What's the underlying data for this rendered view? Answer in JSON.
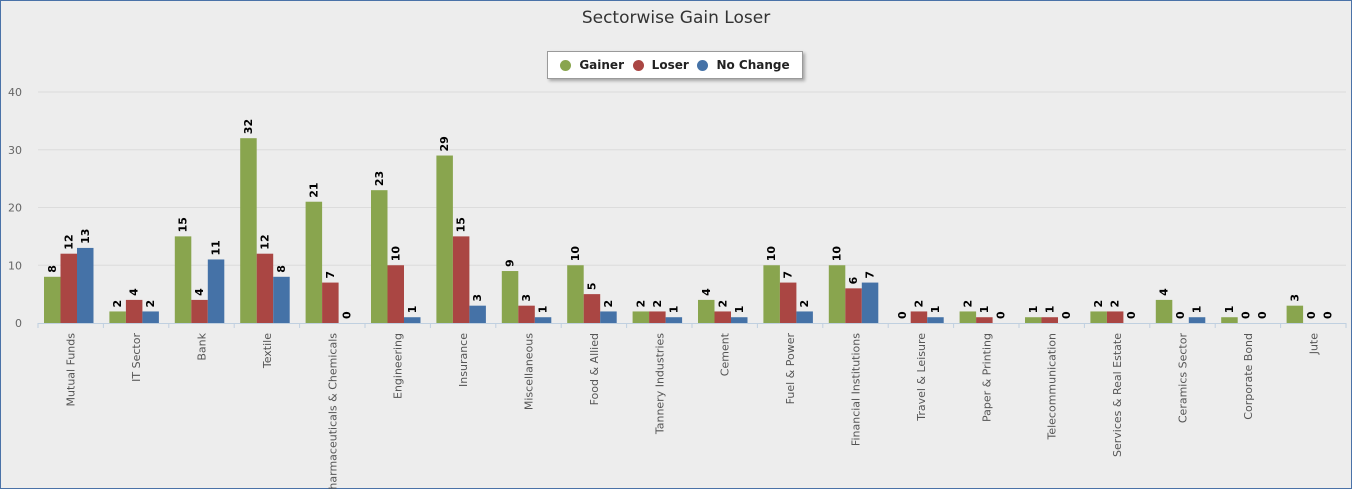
{
  "chart_data": {
    "type": "bar",
    "title": "Sectorwise Gain Loser",
    "xlabel": "",
    "ylabel": "",
    "ylim": [
      0,
      40
    ],
    "yticks": [
      0,
      10,
      20,
      30,
      40
    ],
    "grid": true,
    "legend_position": "top-center",
    "categories": [
      "Mutual Funds",
      "IT Sector",
      "Bank",
      "Textile",
      "Pharmaceuticals & Chemicals",
      "Engineering",
      "Insurance",
      "Miscellaneous",
      "Food & Allied",
      "Tannery Industries",
      "Cement",
      "Fuel & Power",
      "Financial Institutions",
      "Travel & Leisure",
      "Paper & Printing",
      "Telecommunication",
      "Services & Real Estate",
      "Ceramics Sector",
      "Corporate Bond",
      "Jute"
    ],
    "series": [
      {
        "name": "Gainer",
        "color": "#89a54e",
        "values": [
          8,
          2,
          15,
          32,
          21,
          23,
          29,
          9,
          10,
          2,
          4,
          10,
          10,
          0,
          2,
          1,
          2,
          4,
          1,
          3
        ]
      },
      {
        "name": "Loser",
        "color": "#aa4643",
        "values": [
          12,
          4,
          4,
          12,
          7,
          10,
          15,
          3,
          5,
          2,
          2,
          7,
          6,
          2,
          1,
          1,
          2,
          0,
          0,
          0
        ]
      },
      {
        "name": "No Change",
        "color": "#4572a7",
        "values": [
          13,
          2,
          11,
          8,
          0,
          1,
          3,
          1,
          2,
          1,
          1,
          2,
          7,
          1,
          0,
          0,
          0,
          1,
          0,
          0
        ]
      }
    ]
  }
}
